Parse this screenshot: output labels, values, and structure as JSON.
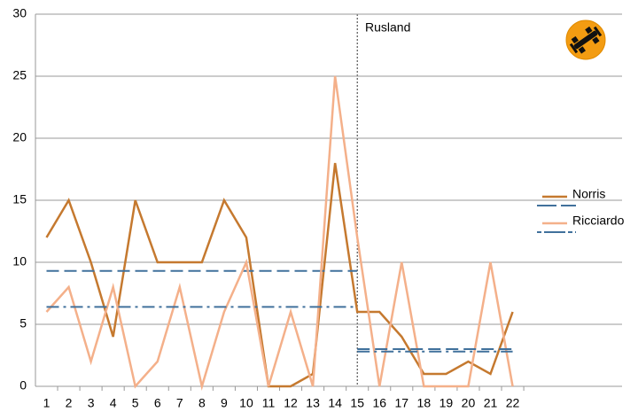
{
  "chart_data": {
    "type": "line",
    "categories": [
      "1",
      "2",
      "3",
      "4",
      "5",
      "6",
      "7",
      "8",
      "9",
      "10",
      "11",
      "12",
      "13",
      "14",
      "15",
      "16",
      "17",
      "18",
      "19",
      "20",
      "21",
      "22"
    ],
    "series": [
      {
        "name": "Norris",
        "color": "#c5792f",
        "style": "solid",
        "values": [
          12,
          15,
          10,
          4,
          15,
          10,
          10,
          10,
          15,
          12,
          0,
          0,
          1,
          18,
          6,
          6,
          4,
          1,
          1,
          2,
          1,
          6
        ]
      },
      {
        "color": "#41719c",
        "style": "dashed",
        "values": [
          9.3,
          9.3,
          9.3,
          9.3,
          9.3,
          9.3,
          9.3,
          9.3,
          9.3,
          9.3,
          9.3,
          9.3,
          9.3,
          9.3,
          9.3,
          null,
          null,
          null,
          null,
          null,
          null,
          null
        ]
      },
      {
        "name": "Ricciardo",
        "color": "#f4b08a",
        "style": "solid",
        "values": [
          6,
          8,
          2,
          8,
          0,
          2,
          8,
          0,
          6,
          10,
          0,
          6,
          0,
          25,
          12,
          0,
          10,
          0,
          0,
          0,
          10,
          0
        ]
      },
      {
        "color": "#41719c",
        "style": "dashdot",
        "values": [
          6.4,
          6.4,
          6.4,
          6.4,
          6.4,
          6.4,
          6.4,
          6.4,
          6.4,
          6.4,
          6.4,
          6.4,
          6.4,
          6.4,
          6.4,
          null,
          null,
          null,
          null,
          null,
          null,
          null
        ]
      },
      {
        "color": "#41719c",
        "style": "dashed",
        "values": [
          null,
          null,
          null,
          null,
          null,
          null,
          null,
          null,
          null,
          null,
          null,
          null,
          null,
          null,
          3.0,
          3.0,
          3.0,
          3.0,
          3.0,
          3.0,
          3.0,
          3.0
        ]
      },
      {
        "color": "#41719c",
        "style": "dashdot",
        "values": [
          null,
          null,
          null,
          null,
          null,
          null,
          null,
          null,
          null,
          null,
          null,
          null,
          null,
          null,
          2.8,
          2.8,
          2.8,
          2.8,
          2.8,
          2.8,
          2.8,
          2.8
        ]
      }
    ],
    "annotation": {
      "text": "Rusland",
      "x": "15"
    },
    "ylim": [
      0,
      30
    ],
    "yticks": [
      0,
      5,
      10,
      15,
      20,
      25,
      30
    ],
    "grid": true
  }
}
